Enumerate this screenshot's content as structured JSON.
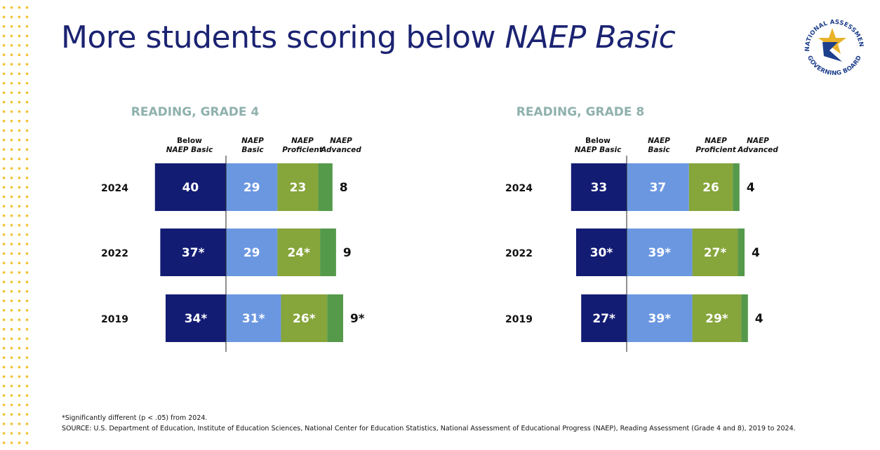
{
  "title": {
    "main": "More students scoring below ",
    "emphasis": "NAEP Basic"
  },
  "logo": {
    "arc_top": "NATIONAL ASSESSMENT",
    "arc_bottom": "GOVERNING BOARD",
    "icon": "star-logo-icon"
  },
  "colors": {
    "title": "#1b2372",
    "panel_title": "#8fb1ad",
    "below_basic": "#131c73",
    "basic": "#6b97e1",
    "proficient": "#86a53a",
    "advanced": "#55994a",
    "dots": "#f1c232",
    "logo_navy": "#1e3f8c",
    "logo_gold": "#e8b22a"
  },
  "chart_data": [
    {
      "type": "bar",
      "orientation": "horizontal-stacked-diverging",
      "title": "READING, GRADE 4",
      "legend": [
        {
          "l1": "Below",
          "l2": "NAEP Basic",
          "italic2": true
        },
        {
          "l1": "NAEP",
          "l2": "Basic",
          "italic1": true,
          "italic2": true
        },
        {
          "l1": "NAEP",
          "l2": "Proficient",
          "italic1": true,
          "italic2": true
        },
        {
          "l1": "NAEP",
          "l2": "Advanced",
          "italic1": true,
          "italic2": true
        }
      ],
      "categories": [
        "2024",
        "2022",
        "2019"
      ],
      "series": [
        {
          "name": "Below NAEP Basic",
          "values": [
            40,
            37,
            34
          ],
          "labels": [
            "40",
            "37*",
            "34*"
          ]
        },
        {
          "name": "NAEP Basic",
          "values": [
            29,
            29,
            31
          ],
          "labels": [
            "29",
            "29",
            "31*"
          ]
        },
        {
          "name": "NAEP Proficient",
          "values": [
            23,
            24,
            26
          ],
          "labels": [
            "23",
            "24*",
            "26*"
          ]
        },
        {
          "name": "NAEP Advanced",
          "values": [
            8,
            9,
            9
          ],
          "labels": [
            "8",
            "9",
            "9*"
          ]
        }
      ]
    },
    {
      "type": "bar",
      "orientation": "horizontal-stacked-diverging",
      "title": "READING, GRADE 8",
      "legend": [
        {
          "l1": "Below",
          "l2": "NAEP Basic",
          "italic2": true
        },
        {
          "l1": "NAEP",
          "l2": "Basic",
          "italic1": true,
          "italic2": true
        },
        {
          "l1": "NAEP",
          "l2": "Proficient",
          "italic1": true,
          "italic2": true
        },
        {
          "l1": "NAEP",
          "l2": "Advanced",
          "italic1": true,
          "italic2": true
        }
      ],
      "categories": [
        "2024",
        "2022",
        "2019"
      ],
      "series": [
        {
          "name": "Below NAEP Basic",
          "values": [
            33,
            30,
            27
          ],
          "labels": [
            "33",
            "30*",
            "27*"
          ]
        },
        {
          "name": "NAEP Basic",
          "values": [
            37,
            39,
            39
          ],
          "labels": [
            "37",
            "39*",
            "39*"
          ]
        },
        {
          "name": "NAEP Proficient",
          "values": [
            26,
            27,
            29
          ],
          "labels": [
            "26",
            "27*",
            "29*"
          ]
        },
        {
          "name": "NAEP Advanced",
          "values": [
            4,
            4,
            4
          ],
          "labels": [
            "4",
            "4",
            "4"
          ]
        }
      ]
    }
  ],
  "footnote": "*Significantly different (p < .05) from 2024.",
  "source": "SOURCE: U.S. Department of Education, Institute of Education Sciences, National Center for Education Statistics, National Assessment of Educational Progress (NAEP), Reading Assessment (Grade 4 and 8), 2019 to 2024."
}
